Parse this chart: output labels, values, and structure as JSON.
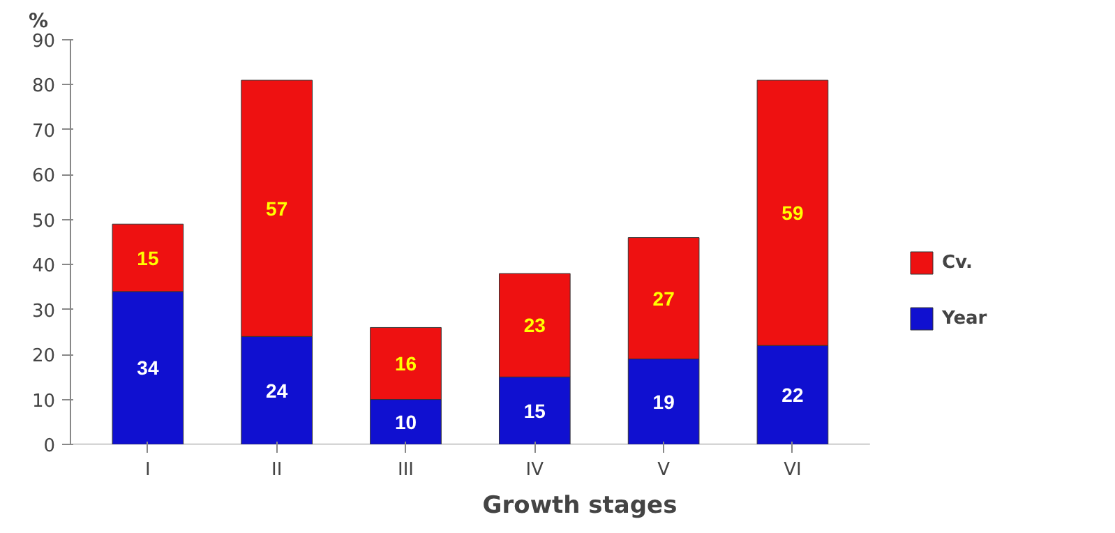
{
  "chart_data": {
    "type": "bar",
    "stacked": true,
    "xlabel": "Growth stages",
    "ylabel": "%",
    "categories": [
      "I",
      "II",
      "III",
      "IV",
      "V",
      "VI"
    ],
    "series": [
      {
        "name": "Year",
        "color": "#1010d0",
        "values": [
          34,
          24,
          10,
          15,
          19,
          22
        ]
      },
      {
        "name": "Cv.",
        "color": "#ee1111",
        "values": [
          15,
          57,
          16,
          23,
          27,
          59
        ]
      }
    ],
    "ylim": [
      0,
      90
    ],
    "yticks": [
      0,
      10,
      20,
      30,
      40,
      50,
      60,
      70,
      80,
      90
    ],
    "grid": false,
    "legend": "right",
    "data_labels": true
  }
}
